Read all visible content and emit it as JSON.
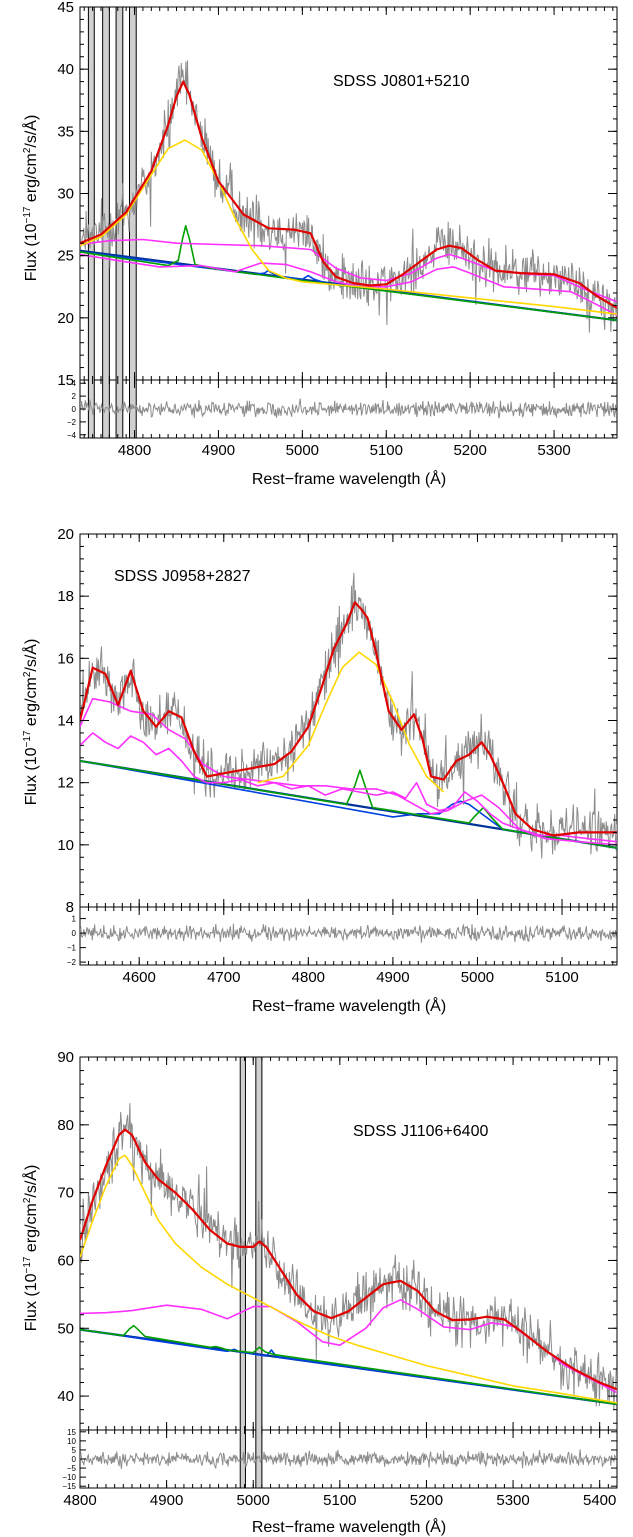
{
  "chart_data": [
    {
      "type": "line",
      "title": "SDSS J0801+5210",
      "xlabel": "Rest−frame wavelength (Å)",
      "ylabel": "Flux (10",
      "ylabel_exp": "−17",
      "ylabel_mid": " erg/cm",
      "ylabel_exp2": "2",
      "ylabel_end": "/s/Å)",
      "xlim": [
        4735,
        5375
      ],
      "ylim": [
        15,
        45
      ],
      "xticks": [
        4800,
        4900,
        5000,
        5100,
        5200,
        5300
      ],
      "yticks": [
        15,
        20,
        25,
        30,
        35,
        40,
        45
      ],
      "residual_ylim": [
        -4.5,
        4.5
      ],
      "residual_yticks": [
        4,
        2,
        0,
        -2,
        -4
      ],
      "masked_regions": [
        [
          4745,
          4752
        ],
        [
          4762,
          4770
        ],
        [
          4778,
          4786
        ],
        [
          4794,
          4802
        ]
      ],
      "colors": {
        "data": "#8c8c8c",
        "total": "#e00000",
        "broad": "#ffd700",
        "narrow": "#00a000",
        "oiii": "#0040e0",
        "feii": "#ff30ff",
        "continuum": "#003399"
      },
      "series": [
        {
          "key": "total",
          "x": [
            4735,
            4760,
            4790,
            4820,
            4840,
            4850,
            4858,
            4865,
            4880,
            4900,
            4930,
            4960,
            4990,
            5010,
            5025,
            5040,
            5060,
            5080,
            5100,
            5120,
            5140,
            5160,
            5175,
            5190,
            5210,
            5230,
            5260,
            5300,
            5330,
            5350,
            5375
          ],
          "y": [
            26,
            26.7,
            28.5,
            31.8,
            35.5,
            37.8,
            39,
            38,
            34.5,
            31,
            28.3,
            27.2,
            27.1,
            26.8,
            24.5,
            23.3,
            22.8,
            22.6,
            22.7,
            23.5,
            24.5,
            25.5,
            25.8,
            25.6,
            24.6,
            23.8,
            23.6,
            23.5,
            22.8,
            21.8,
            20.8
          ]
        },
        {
          "key": "broad",
          "x": [
            4735,
            4760,
            4790,
            4820,
            4840,
            4860,
            4880,
            4900,
            4920,
            4940,
            4960,
            4980,
            5000,
            5050,
            5100,
            5200,
            5300,
            5375
          ],
          "y": [
            25.8,
            26.5,
            28.3,
            31.5,
            33.6,
            34.3,
            33.5,
            31,
            28,
            25.5,
            23.8,
            23.2,
            22.9,
            22.6,
            22.3,
            21.6,
            20.9,
            20.3
          ]
        },
        {
          "key": "narrow",
          "x": [
            4735,
            4840,
            4852,
            4857,
            4861,
            4866,
            4872,
            4890,
            5000,
            5375
          ],
          "y": [
            25.3,
            24.2,
            24.6,
            26.3,
            27.4,
            26.2,
            24.3,
            24,
            23,
            19.8
          ]
        },
        {
          "key": "oiii",
          "x": [
            4735,
            4945,
            4955,
            4959,
            4964,
            4975,
            5000,
            5007,
            5014,
            5028,
            5100,
            5375
          ],
          "y": [
            25.3,
            23.5,
            23.6,
            23.8,
            23.6,
            23.3,
            23.1,
            23.4,
            23.1,
            22.8,
            22.2,
            19.8
          ]
        },
        {
          "key": "feii_upper",
          "x": [
            4735,
            4770,
            4810,
            4850,
            4900,
            4950,
            4990,
            5010,
            5040,
            5070,
            5100,
            5130,
            5160,
            5175,
            5190,
            5230,
            5270,
            5300,
            5340,
            5375
          ],
          "y": [
            25.9,
            26.2,
            26.3,
            26,
            25.9,
            25.8,
            25.6,
            25.5,
            24,
            23.2,
            23,
            23.6,
            24.8,
            25.1,
            24.8,
            23.8,
            23.5,
            23.4,
            22.2,
            21.3
          ]
        },
        {
          "key": "feii_lower",
          "x": [
            4735,
            4780,
            4830,
            4880,
            4920,
            4950,
            4980,
            5010,
            5040,
            5070,
            5100,
            5130,
            5160,
            5180,
            5200,
            5240,
            5280,
            5320,
            5350,
            5375
          ],
          "y": [
            25.1,
            24.6,
            24.1,
            24.2,
            23.7,
            24.4,
            24.3,
            23.7,
            22.9,
            22.5,
            22.5,
            22.9,
            23.9,
            24.1,
            23.6,
            22.5,
            22.3,
            22.1,
            21.1,
            20.2
          ]
        },
        {
          "key": "continuum",
          "x": [
            4735,
            5375
          ],
          "y": [
            25.4,
            19.8
          ]
        }
      ]
    },
    {
      "type": "line",
      "title": "SDSS J0958+2827",
      "xlabel": "Rest−frame wavelength (Å)",
      "ylabel": "Flux (10",
      "ylabel_exp": "−17",
      "ylabel_mid": " erg/cm",
      "ylabel_exp2": "2",
      "ylabel_end": "/s/Å)",
      "xlim": [
        4530,
        5165
      ],
      "ylim": [
        8,
        20
      ],
      "xticks": [
        4600,
        4700,
        4800,
        4900,
        5000,
        5100
      ],
      "yticks": [
        8,
        10,
        12,
        14,
        16,
        18,
        20
      ],
      "residual_ylim": [
        -2.2,
        1.8
      ],
      "residual_yticks": [
        1,
        0,
        -1,
        -2
      ],
      "masked_regions": [],
      "colors": {
        "data": "#8c8c8c",
        "total": "#e00000",
        "broad": "#ffd700",
        "narrow": "#00a000",
        "oiii": "#0040e0",
        "feii": "#ff30ff",
        "continuum": "#003399"
      },
      "series": [
        {
          "key": "total",
          "x": [
            4530,
            4545,
            4560,
            4575,
            4590,
            4605,
            4620,
            4635,
            4650,
            4665,
            4680,
            4700,
            4720,
            4740,
            4760,
            4780,
            4800,
            4815,
            4830,
            4845,
            4855,
            4862,
            4870,
            4880,
            4895,
            4910,
            4925,
            4935,
            4945,
            4960,
            4975,
            4990,
            5005,
            5015,
            5030,
            5045,
            5065,
            5090,
            5120,
            5165
          ],
          "y": [
            14,
            15.7,
            15.5,
            14.5,
            15.6,
            14.3,
            13.8,
            14.3,
            14.1,
            13,
            12.2,
            12.3,
            12.4,
            12.5,
            12.6,
            13,
            13.8,
            15,
            16.3,
            17.1,
            17.8,
            17.6,
            17.3,
            16.2,
            14.3,
            13.7,
            14.2,
            13.4,
            12.2,
            12.1,
            12.7,
            12.9,
            13.3,
            12.9,
            12,
            11,
            10.5,
            10.3,
            10.4,
            10.4
          ]
        },
        {
          "key": "broad",
          "x": [
            4740,
            4770,
            4800,
            4820,
            4840,
            4860,
            4880,
            4900,
            4920,
            4940,
            4960
          ],
          "y": [
            12,
            12.2,
            13.2,
            14.5,
            15.7,
            16.2,
            15.8,
            14.6,
            13.2,
            12.2,
            11.7
          ]
        },
        {
          "key": "narrow",
          "x": [
            4530,
            4845,
            4855,
            4861,
            4867,
            4876,
            4990,
            4996,
            5007,
            5016,
            5030,
            5165
          ],
          "y": [
            12.7,
            11.3,
            11.9,
            12.4,
            11.9,
            11.2,
            10.7,
            10.9,
            11.2,
            10.9,
            10.5,
            9.9
          ]
        },
        {
          "key": "oiii",
          "x": [
            4530,
            4900,
            4930,
            4955,
            4970,
            4980,
            4990,
            5000,
            5015,
            5030,
            5165
          ],
          "y": [
            12.7,
            10.9,
            11.0,
            11.0,
            11.3,
            11.4,
            11.3,
            11.1,
            10.8,
            10.5,
            9.9
          ]
        },
        {
          "key": "feii_upper",
          "x": [
            4530,
            4545,
            4565,
            4590,
            4615,
            4635,
            4655,
            4675,
            4700,
            4730,
            4760,
            4790,
            4820,
            4850,
            4880,
            4905,
            4925,
            4945,
            4965,
            4985,
            5005,
            5025,
            5050,
            5080,
            5120,
            5165
          ],
          "y": [
            13.8,
            14.7,
            14.6,
            14.3,
            14.2,
            13.7,
            13.4,
            12.6,
            12.2,
            12.1,
            12.0,
            11.9,
            11.9,
            11.8,
            11.8,
            11.6,
            11.3,
            11.0,
            11.1,
            11.4,
            11.6,
            11.2,
            10.5,
            10.2,
            10.1,
            10.0
          ]
        },
        {
          "key": "feii_lower",
          "x": [
            4530,
            4545,
            4560,
            4575,
            4590,
            4605,
            4620,
            4635,
            4650,
            4665,
            4680,
            4700,
            4720,
            4740,
            4760,
            4780,
            4800,
            4820,
            4840,
            4860,
            4880,
            4900,
            4915,
            4928,
            4940,
            4955,
            4970,
            4985,
            5000,
            5015,
            5030,
            5050,
            5075,
            5100,
            5130,
            5165
          ],
          "y": [
            13.2,
            13.6,
            13.3,
            13.1,
            13.5,
            13.3,
            12.9,
            13.1,
            12.7,
            12.2,
            12.0,
            12.0,
            12.1,
            11.9,
            12.0,
            11.8,
            11.9,
            11.6,
            11.8,
            11.7,
            11.6,
            11.7,
            11.5,
            12.0,
            11.3,
            11.1,
            11.2,
            11.7,
            11.4,
            11.0,
            10.7,
            10.5,
            10.3,
            10.3,
            10.2,
            10.1
          ]
        },
        {
          "key": "continuum",
          "x": [
            4530,
            5165
          ],
          "y": [
            12.7,
            9.9
          ]
        }
      ]
    },
    {
      "type": "line",
      "title": "SDSS J1106+6400",
      "xlabel": "Rest−frame wavelength (Å)",
      "ylabel": "Flux (10",
      "ylabel_exp": "−17",
      "ylabel_mid": " erg/cm",
      "ylabel_exp2": "2",
      "ylabel_end": "/s/Å)",
      "xlim": [
        4800,
        5420
      ],
      "ylim": [
        35,
        90
      ],
      "xticks": [
        4800,
        4900,
        5000,
        5100,
        5200,
        5300,
        5400
      ],
      "yticks": [
        40,
        50,
        60,
        70,
        80,
        90
      ],
      "residual_ylim": [
        -16,
        16
      ],
      "residual_yticks": [
        15,
        10,
        5,
        0,
        -5,
        -10,
        -15
      ],
      "masked_regions": [
        [
          4985,
          4991
        ],
        [
          5003,
          5010
        ]
      ],
      "colors": {
        "data": "#8c8c8c",
        "total": "#e00000",
        "broad": "#ffd700",
        "narrow": "#00a000",
        "oiii": "#0040e0",
        "feii": "#ff30ff",
        "continuum": "#003399"
      },
      "series": [
        {
          "key": "total",
          "x": [
            4800,
            4815,
            4830,
            4845,
            4852,
            4860,
            4875,
            4890,
            4910,
            4930,
            4950,
            4970,
            4985,
            5000,
            5007,
            5015,
            5030,
            5050,
            5070,
            5090,
            5110,
            5130,
            5150,
            5170,
            5190,
            5210,
            5230,
            5250,
            5270,
            5290,
            5310,
            5340,
            5370,
            5400,
            5420
          ],
          "y": [
            63,
            69,
            74,
            78.5,
            79.3,
            78.5,
            74.5,
            72,
            70,
            67.5,
            64.5,
            62.5,
            62,
            62,
            62.8,
            62,
            59,
            55,
            52.5,
            51.5,
            52.5,
            54.5,
            56.5,
            57,
            55.5,
            52.5,
            51.2,
            51.3,
            51.7,
            51.3,
            49.5,
            46.5,
            44,
            42,
            41
          ]
        },
        {
          "key": "broad",
          "x": [
            4800,
            4815,
            4830,
            4845,
            4852,
            4860,
            4875,
            4890,
            4910,
            4940,
            4970,
            5000,
            5030,
            5060,
            5090,
            5120,
            5160,
            5200,
            5250,
            5300,
            5350,
            5420
          ],
          "y": [
            60.5,
            66,
            71,
            75,
            75.5,
            74,
            70,
            66,
            62.5,
            59,
            56.5,
            54.5,
            52.5,
            50.5,
            48.8,
            47.5,
            46,
            44.5,
            43,
            41.5,
            40.5,
            39
          ]
        },
        {
          "key": "narrow",
          "x": [
            4800,
            4850,
            4857,
            4862,
            4867,
            4875,
            4950,
            4957,
            4963,
            4970,
            5000,
            5007,
            5014,
            5025,
            5420
          ],
          "y": [
            49.8,
            48.9,
            49.9,
            50.4,
            49.8,
            48.8,
            47.2,
            47.3,
            47.1,
            46.8,
            46.4,
            47.2,
            46.5,
            46.1,
            38.8
          ]
        },
        {
          "key": "oiii",
          "x": [
            4800,
            4970,
            4978,
            4985,
            5015,
            5021,
            5027,
            5420
          ],
          "y": [
            49.8,
            46.6,
            46.9,
            46.5,
            45.9,
            46.8,
            45.8,
            38.8
          ]
        },
        {
          "key": "feii",
          "x": [
            4800,
            4830,
            4860,
            4900,
            4940,
            4970,
            5000,
            5020,
            5050,
            5080,
            5100,
            5130,
            5150,
            5170,
            5190,
            5220,
            5250,
            5275,
            5300,
            5330,
            5360,
            5390,
            5420
          ],
          "y": [
            52.2,
            52.3,
            52.6,
            53.4,
            52.8,
            51.4,
            53.2,
            53.2,
            51,
            48,
            47.5,
            50,
            53,
            54.2,
            52.8,
            50.2,
            49.8,
            50.8,
            50.3,
            47.5,
            44.5,
            42.5,
            40.5
          ]
        },
        {
          "key": "continuum",
          "x": [
            4800,
            5420
          ],
          "y": [
            49.8,
            38.8
          ]
        }
      ]
    }
  ]
}
